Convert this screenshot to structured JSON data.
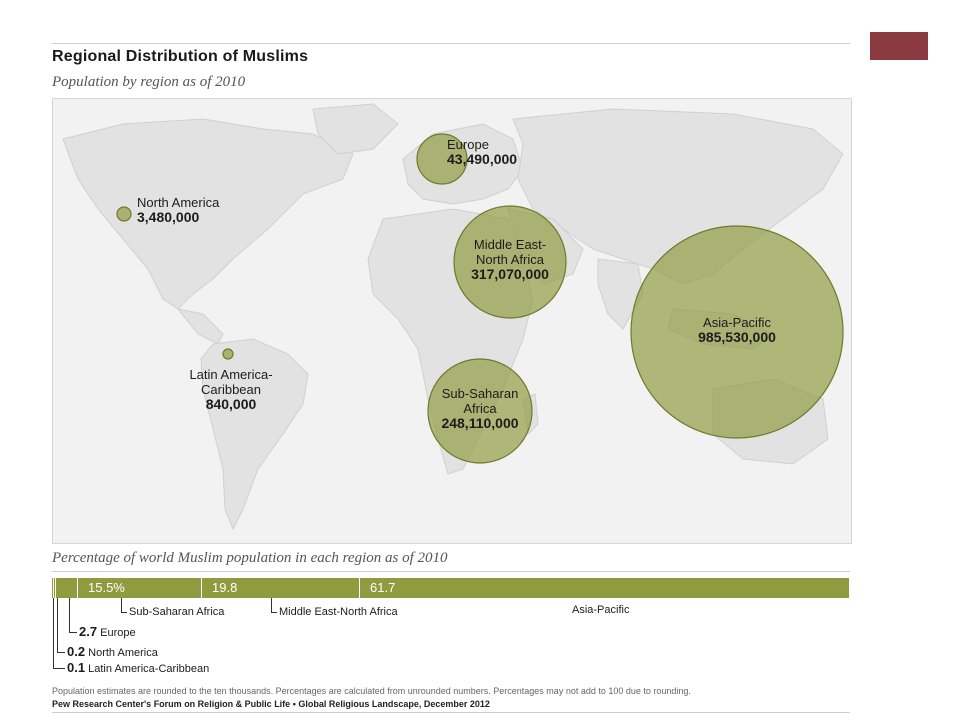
{
  "title": "Regional Distribution of Muslims",
  "subtitle": "Population by region as of 2010",
  "regions": [
    {
      "id": "europe",
      "name": "Europe",
      "population": "43,490,000"
    },
    {
      "id": "north_america",
      "name": "North America",
      "population": "3,480,000"
    },
    {
      "id": "mena",
      "name_line1": "Middle East-",
      "name_line2": "North Africa",
      "population": "317,070,000"
    },
    {
      "id": "asia_pacific",
      "name": "Asia-Pacific",
      "population": "985,530,000"
    },
    {
      "id": "latin_america",
      "name_line1": "Latin America-",
      "name_line2": "Caribbean",
      "population": "840,000"
    },
    {
      "id": "sub_saharan",
      "name_line1": "Sub-Saharan",
      "name_line2": "Africa",
      "population": "248,110,000"
    }
  ],
  "percentage": {
    "title": "Percentage of world Muslim population in each region as of 2010",
    "segments": [
      {
        "label": "Latin America-Caribbean",
        "value": 0.1,
        "display": "0.1"
      },
      {
        "label": "North America",
        "value": 0.2,
        "display": "0.2"
      },
      {
        "label": "Europe",
        "value": 2.7,
        "display": "2.7"
      },
      {
        "label": "Sub-Saharan Africa",
        "value": 15.5,
        "display": "15.5%"
      },
      {
        "label": "Middle East-North Africa",
        "value": 19.8,
        "display": "19.8"
      },
      {
        "label": "Asia-Pacific",
        "value": 61.7,
        "display": "61.7"
      }
    ]
  },
  "footnote": "Population estimates are rounded to the ten thousands. Percentages are calculated from unrounded numbers. Percentages may not add to 100 due to rounding.",
  "source": "Pew Research Center's Forum on Religion & Public Life • Global Religious Landscape, December 2012",
  "colors": {
    "land": "#e3e3e3",
    "bubble": "#8e9b3e",
    "bar": "#8e9b3e",
    "accent_box": "#8a3a40"
  }
}
